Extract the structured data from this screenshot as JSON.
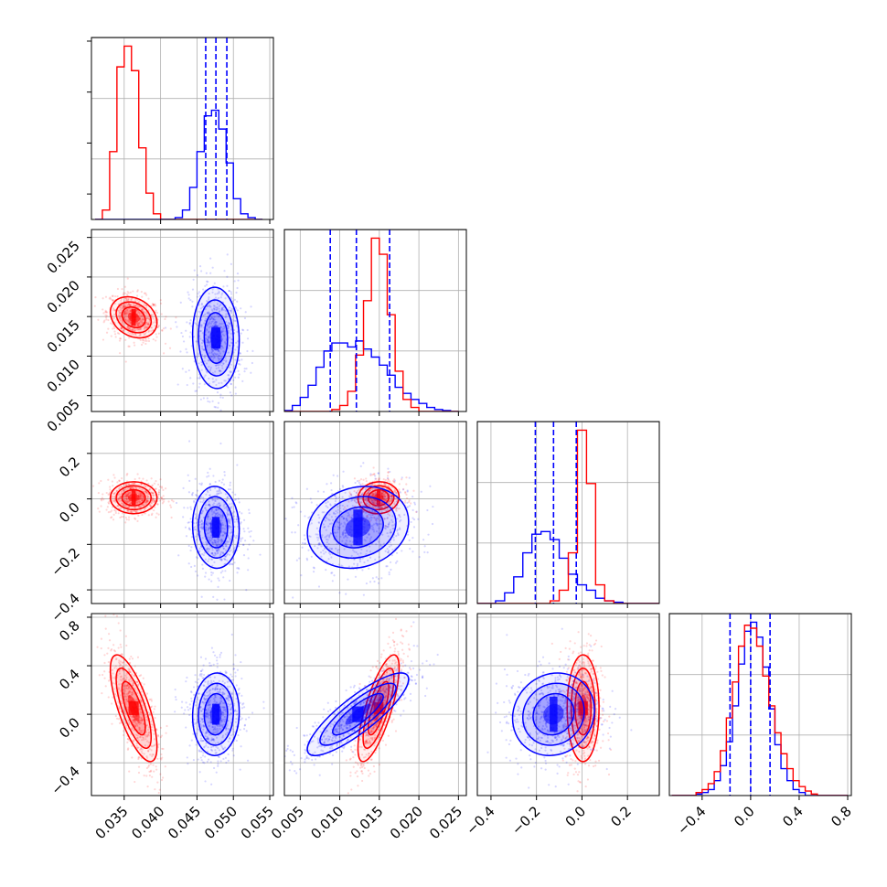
{
  "chart_data": {
    "type": "corner",
    "colors": {
      "a": "#0000ff",
      "b": "#ff0000"
    },
    "grid": true,
    "histograms": [
      {
        "param": 0,
        "xlim": [
          0.0305,
          0.0555
        ],
        "bins": [
          0.031,
          0.032,
          0.033,
          0.034,
          0.035,
          0.036,
          0.037,
          0.038,
          0.039,
          0.04,
          0.041,
          0.042,
          0.043,
          0.044,
          0.045,
          0.046,
          0.047,
          0.048,
          0.049,
          0.05,
          0.051,
          0.052,
          0.053,
          0.054
        ],
        "series": [
          {
            "color": "#ff0000",
            "counts": [
              0.0,
              0.05,
              0.36,
              0.81,
              0.92,
              0.79,
              0.38,
              0.14,
              0.03,
              0.0,
              0,
              0,
              0,
              0,
              0,
              0,
              0,
              0,
              0,
              0,
              0,
              0,
              0
            ]
          },
          {
            "color": "#0000ff",
            "counts": [
              0,
              0,
              0,
              0,
              0,
              0,
              0,
              0,
              0,
              0,
              0.0,
              0.01,
              0.05,
              0.17,
              0.36,
              0.55,
              0.58,
              0.48,
              0.3,
              0.11,
              0.03,
              0.01,
              0.0
            ]
          }
        ],
        "quantiles": [
          0.0462,
          0.0476,
          0.0491
        ],
        "quantile_color": "#0000ff"
      },
      {
        "param": 1,
        "xlim": [
          0.003,
          0.026
        ],
        "bins": [
          0.003,
          0.004,
          0.005,
          0.006,
          0.007,
          0.008,
          0.009,
          0.01,
          0.011,
          0.012,
          0.013,
          0.014,
          0.015,
          0.016,
          0.017,
          0.018,
          0.019,
          0.02,
          0.021,
          0.022,
          0.023,
          0.024,
          0.025
        ],
        "series": [
          {
            "color": "#0000ff",
            "counts": [
              0.005,
              0.03,
              0.07,
              0.13,
              0.22,
              0.3,
              0.34,
              0.34,
              0.32,
              0.35,
              0.31,
              0.27,
              0.23,
              0.18,
              0.12,
              0.09,
              0.06,
              0.04,
              0.02,
              0.01,
              0.005,
              0.0
            ]
          },
          {
            "color": "#ff0000",
            "counts": [
              0,
              0,
              0,
              0,
              0,
              0.0,
              0.01,
              0.03,
              0.1,
              0.28,
              0.55,
              0.86,
              0.78,
              0.48,
              0.2,
              0.06,
              0.02,
              0.0,
              0,
              0,
              0,
              0
            ]
          }
        ],
        "quantiles": [
          0.0088,
          0.0121,
          0.0163
        ],
        "quantile_color": "#0000ff"
      },
      {
        "param": 2,
        "xlim": [
          -0.46,
          0.34
        ],
        "bins": [
          -0.46,
          -0.42,
          -0.38,
          -0.34,
          -0.3,
          -0.26,
          -0.22,
          -0.18,
          -0.14,
          -0.1,
          -0.06,
          -0.02,
          0.02,
          0.06,
          0.1,
          0.14,
          0.18,
          0.22,
          0.26,
          0.3,
          0.34
        ],
        "series": [
          {
            "color": "#0000ff",
            "counts": [
              0.0,
              0.0,
              0.01,
              0.04,
              0.1,
              0.19,
              0.26,
              0.27,
              0.24,
              0.17,
              0.11,
              0.07,
              0.05,
              0.02,
              0.01,
              0.005,
              0.0,
              0.0,
              0.0,
              0.0
            ]
          },
          {
            "color": "#ff0000",
            "counts": [
              0,
              0,
              0,
              0,
              0,
              0,
              0,
              0.0,
              0.01,
              0.05,
              0.19,
              0.65,
              0.45,
              0.07,
              0.01,
              0.0,
              0,
              0,
              0,
              0
            ]
          }
        ],
        "quantiles": [
          -0.205,
          -0.125,
          -0.025
        ],
        "quantile_color": "#0000ff"
      },
      {
        "param": 3,
        "xlim": [
          -0.67,
          0.83
        ],
        "bins": [
          -0.65,
          -0.6,
          -0.55,
          -0.5,
          -0.45,
          -0.4,
          -0.35,
          -0.3,
          -0.25,
          -0.2,
          -0.15,
          -0.1,
          -0.05,
          0.0,
          0.05,
          0.1,
          0.15,
          0.2,
          0.25,
          0.3,
          0.35,
          0.4,
          0.45,
          0.5,
          0.55,
          0.6,
          0.65,
          0.7,
          0.75,
          0.8
        ],
        "series": [
          {
            "color": "#0000ff",
            "counts": [
              0.0,
              0.0,
              0.0,
              0.0,
              0.005,
              0.01,
              0.02,
              0.05,
              0.1,
              0.18,
              0.3,
              0.44,
              0.55,
              0.58,
              0.53,
              0.43,
              0.29,
              0.17,
              0.09,
              0.05,
              0.02,
              0.01,
              0.0,
              0.0,
              0.0,
              0.0,
              0.0,
              0.0,
              0.0
            ]
          },
          {
            "color": "#ff0000",
            "counts": [
              0.0,
              0.0,
              0.0,
              0.0,
              0.01,
              0.02,
              0.04,
              0.08,
              0.15,
              0.26,
              0.38,
              0.5,
              0.57,
              0.56,
              0.5,
              0.4,
              0.3,
              0.21,
              0.14,
              0.09,
              0.05,
              0.03,
              0.015,
              0.005,
              0.0,
              0.0,
              0.0,
              0.0,
              0.0
            ]
          }
        ],
        "quantiles": [
          -0.17,
          0.0,
          0.16
        ],
        "quantile_color": "#0000ff"
      }
    ],
    "scatter2d": [
      {
        "row": 1,
        "col": 0,
        "xlim": [
          0.0305,
          0.0555
        ],
        "ylim": [
          0.003,
          0.026
        ],
        "blobs": [
          {
            "color": "#ff0000",
            "center": [
              0.0363,
              0.0149
            ],
            "sd": [
              0.0016,
              0.0013
            ],
            "rho": -0.25
          },
          {
            "color": "#0000ff",
            "center": [
              0.0476,
              0.0123
            ],
            "sd": [
              0.0016,
              0.0032
            ],
            "rho": -0.05
          }
        ]
      },
      {
        "row": 2,
        "col": 0,
        "xlim": [
          0.0305,
          0.0555
        ],
        "ylim": [
          -0.46,
          0.34
        ],
        "blobs": [
          {
            "color": "#ff0000",
            "center": [
              0.0363,
              0.005
            ],
            "sd": [
              0.0016,
              0.035
            ],
            "rho": 0.0
          },
          {
            "color": "#0000ff",
            "center": [
              0.0476,
              -0.125
            ],
            "sd": [
              0.0016,
              0.09
            ],
            "rho": -0.05
          }
        ]
      },
      {
        "row": 2,
        "col": 1,
        "xlim": [
          0.003,
          0.026
        ],
        "ylim": [
          -0.46,
          0.34
        ],
        "blobs": [
          {
            "color": "#ff0000",
            "center": [
              0.0149,
              0.005
            ],
            "sd": [
              0.0013,
              0.035
            ],
            "rho": 0.05
          },
          {
            "color": "#0000ff",
            "center": [
              0.0123,
              -0.125
            ],
            "sd": [
              0.0032,
              0.09
            ],
            "rho": 0.15
          }
        ]
      },
      {
        "row": 3,
        "col": 0,
        "xlim": [
          0.0305,
          0.0555
        ],
        "ylim": [
          -0.67,
          0.83
        ],
        "blobs": [
          {
            "color": "#ff0000",
            "center": [
              0.0363,
              0.05
            ],
            "sd": [
              0.0016,
              0.22
            ],
            "rho": -0.72
          },
          {
            "color": "#0000ff",
            "center": [
              0.0476,
              0.0
            ],
            "sd": [
              0.0016,
              0.17
            ],
            "rho": 0.05
          }
        ]
      },
      {
        "row": 3,
        "col": 1,
        "xlim": [
          0.003,
          0.026
        ],
        "ylim": [
          -0.67,
          0.83
        ],
        "blobs": [
          {
            "color": "#ff0000",
            "center": [
              0.0149,
              0.05
            ],
            "sd": [
              0.0013,
              0.22
            ],
            "rho": 0.75
          },
          {
            "color": "#0000ff",
            "center": [
              0.0123,
              0.0
            ],
            "sd": [
              0.0032,
              0.17
            ],
            "rho": 0.85
          }
        ]
      },
      {
        "row": 3,
        "col": 2,
        "xlim": [
          -0.46,
          0.34
        ],
        "ylim": [
          -0.67,
          0.83
        ],
        "blobs": [
          {
            "color": "#ff0000",
            "center": [
              0.005,
              0.05
            ],
            "sd": [
              0.035,
              0.22
            ],
            "rho": 0.0
          },
          {
            "color": "#0000ff",
            "center": [
              -0.125,
              0.0
            ],
            "sd": [
              0.09,
              0.17
            ],
            "rho": 0.1
          }
        ]
      }
    ],
    "axes": {
      "p0": {
        "ticks": [
          0.035,
          0.04,
          0.045,
          0.05,
          0.055
        ],
        "labels": [
          "0.035",
          "0.040",
          "0.045",
          "0.050",
          "0.055"
        ]
      },
      "p1": {
        "ticks": [
          0.005,
          0.01,
          0.015,
          0.02,
          0.025
        ],
        "labels": [
          "0.005",
          "0.010",
          "0.015",
          "0.020",
          "0.025"
        ]
      },
      "p2_x": {
        "ticks": [
          -0.4,
          -0.2,
          0.0,
          0.2
        ],
        "labels": [
          "−0.4",
          "−0.2",
          "0.0",
          "0.2"
        ]
      },
      "p2_y": {
        "ticks": [
          -0.4,
          -0.2,
          0.0,
          0.2
        ],
        "labels": [
          "−0.4",
          "−0.2",
          "0.0",
          "0.2"
        ]
      },
      "p3_x": {
        "ticks": [
          -0.4,
          0.0,
          0.4,
          0.8
        ],
        "labels": [
          "−0.4",
          "0.0",
          "0.4",
          "0.8"
        ]
      },
      "p3_y": {
        "ticks": [
          -0.4,
          0.0,
          0.4,
          0.8
        ],
        "labels": [
          "−0.4",
          "0.0",
          "0.4",
          "0.8"
        ]
      }
    }
  }
}
